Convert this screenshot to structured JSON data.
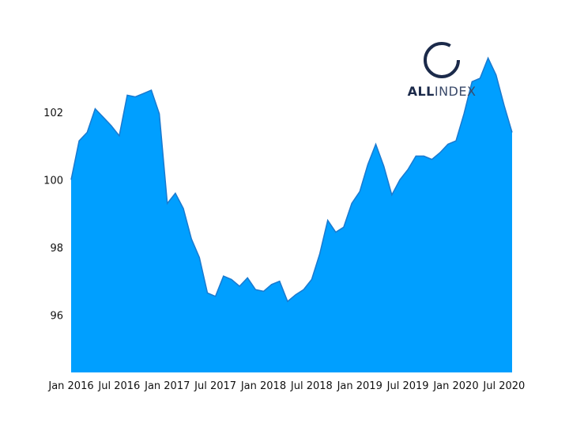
{
  "chart_data": {
    "type": "area",
    "x": [
      "2016-01",
      "2016-02",
      "2016-03",
      "2016-04",
      "2016-05",
      "2016-06",
      "2016-07",
      "2016-08",
      "2016-09",
      "2016-10",
      "2016-11",
      "2016-12",
      "2017-01",
      "2017-02",
      "2017-03",
      "2017-04",
      "2017-05",
      "2017-06",
      "2017-07",
      "2017-08",
      "2017-09",
      "2017-10",
      "2017-11",
      "2017-12",
      "2018-01",
      "2018-02",
      "2018-03",
      "2018-04",
      "2018-05",
      "2018-06",
      "2018-07",
      "2018-08",
      "2018-09",
      "2018-10",
      "2018-11",
      "2018-12",
      "2019-01",
      "2019-02",
      "2019-03",
      "2019-04",
      "2019-05",
      "2019-06",
      "2019-07",
      "2019-08",
      "2019-09",
      "2019-10",
      "2019-11",
      "2019-12",
      "2020-01",
      "2020-02",
      "2020-03",
      "2020-04",
      "2020-05",
      "2020-06",
      "2020-07",
      "2020-08"
    ],
    "values": [
      100.0,
      101.15,
      101.4,
      102.1,
      101.85,
      101.6,
      101.3,
      102.5,
      102.45,
      102.55,
      102.65,
      101.95,
      99.3,
      99.6,
      99.15,
      98.25,
      97.7,
      96.65,
      96.55,
      97.15,
      97.05,
      96.85,
      97.1,
      96.75,
      96.7,
      96.9,
      97.0,
      96.4,
      96.6,
      96.75,
      97.05,
      97.8,
      98.8,
      98.45,
      98.6,
      99.3,
      99.65,
      100.45,
      101.05,
      100.4,
      99.55,
      100.0,
      100.3,
      100.7,
      100.7,
      100.6,
      100.8,
      101.05,
      101.15,
      101.95,
      102.9,
      103.0,
      103.6,
      103.1,
      102.2,
      101.4
    ],
    "color": "#009fff",
    "line_color": "#1a7ad0",
    "xlim": [
      "2016-01",
      "2020-08"
    ],
    "xticks": [
      {
        "value": "2016-01",
        "label": "Jan 2016"
      },
      {
        "value": "2016-07",
        "label": "Jul 2016"
      },
      {
        "value": "2017-01",
        "label": "Jan 2017"
      },
      {
        "value": "2017-07",
        "label": "Jul 2017"
      },
      {
        "value": "2018-01",
        "label": "Jan 2018"
      },
      {
        "value": "2018-07",
        "label": "Jul 2018"
      },
      {
        "value": "2019-01",
        "label": "Jan 2019"
      },
      {
        "value": "2019-07",
        "label": "Jul 2019"
      },
      {
        "value": "2020-01",
        "label": "Jan 2020"
      },
      {
        "value": "2020-07",
        "label": "Jul 2020"
      }
    ],
    "ylim": [
      94.3,
      104.1
    ],
    "yticks": [
      96,
      98,
      100,
      102
    ],
    "logo": {
      "bold": "ALL",
      "light": "INDEX"
    }
  }
}
